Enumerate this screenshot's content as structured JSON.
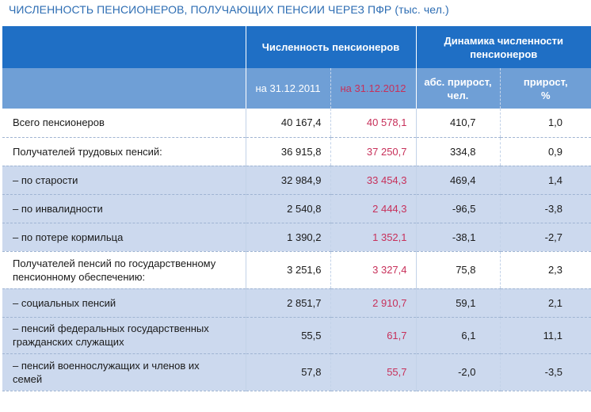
{
  "title": "ЧИСЛЕННОСТЬ ПЕНСИОНЕРОВ, ПОЛУЧАЮЩИХ ПЕНСИИ ЧЕРЕЗ ПФР (тыс. чел.)",
  "header": {
    "group1": "Численность пенсионеров",
    "group2_line1": "Динамика численности",
    "group2_line2": "пенсионеров",
    "col1": "на 31.12.2011",
    "col2": "на 31.12.2012",
    "col3_line1": "абс. прирост,",
    "col3_line2": "чел.",
    "col4_line1": "прирост,",
    "col4_line2": "%"
  },
  "rows": [
    {
      "label": "Всего пенсионеров",
      "label2": "",
      "v2011": "40 167,4",
      "v2012": "40 578,1",
      "abs": "410,7",
      "pct": "1,0"
    },
    {
      "label": "Получателей трудовых пенсий:",
      "label2": "",
      "v2011": "36 915,8",
      "v2012": "37 250,7",
      "abs": "334,8",
      "pct": "0,9"
    },
    {
      "label": "– по старости",
      "label2": "",
      "v2011": "32 984,9",
      "v2012": "33 454,3",
      "abs": "469,4",
      "pct": "1,4"
    },
    {
      "label": "– по инвалидности",
      "label2": "",
      "v2011": "2 540,8",
      "v2012": "2 444,3",
      "abs": "-96,5",
      "pct": "-3,8"
    },
    {
      "label": "– по потере кормильца",
      "label2": "",
      "v2011": "1 390,2",
      "v2012": "1 352,1",
      "abs": "-38,1",
      "pct": "-2,7"
    },
    {
      "label": "Получателей пенсий по государственному",
      "label2": "пенсионному обеспечению:",
      "v2011": "3 251,6",
      "v2012": "3 327,4",
      "abs": "75,8",
      "pct": "2,3"
    },
    {
      "label": "– социальных пенсий",
      "label2": "",
      "v2011": "2 851,7",
      "v2012": "2 910,7",
      "abs": "59,1",
      "pct": "2,1"
    },
    {
      "label": "– пенсий федеральных государственных",
      "label2": "гражданских служащих",
      "v2011": "55,5",
      "v2012": "61,7",
      "abs": "6,1",
      "pct": "11,1"
    },
    {
      "label": "– пенсий военнослужащих и членов их",
      "label2": "семей",
      "v2011": "57,8",
      "v2012": "55,7",
      "abs": "-2,0",
      "pct": "-3,5"
    }
  ],
  "colors": {
    "header_dark": "#1f6fc5",
    "header_light": "#6f9fd6",
    "row_shade": "#ccd9ee",
    "accent_red": "#c7305a",
    "title_blue": "#2d6db3"
  }
}
